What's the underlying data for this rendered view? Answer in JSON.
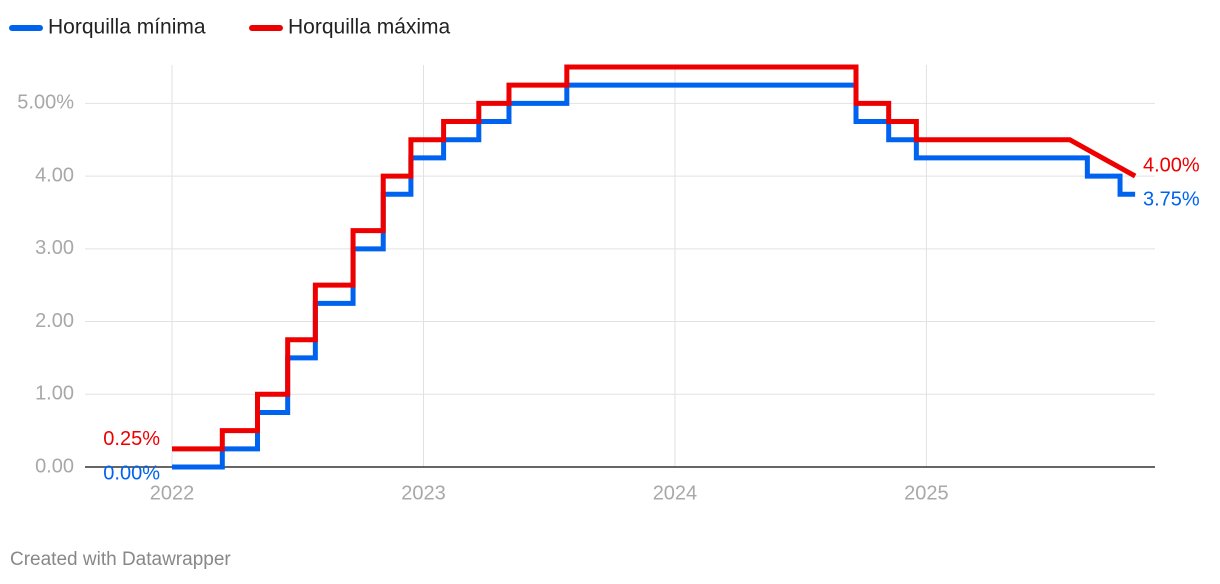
{
  "chart_data": {
    "type": "line",
    "series": [
      {
        "name": "Horquilla mínima",
        "color": "#0063ef",
        "x": [
          2022.0,
          2022.2,
          2022.2,
          2022.34,
          2022.34,
          2022.46,
          2022.46,
          2022.57,
          2022.57,
          2022.72,
          2022.72,
          2022.84,
          2022.84,
          2022.95,
          2022.95,
          2023.08,
          2023.08,
          2023.22,
          2023.22,
          2023.34,
          2023.34,
          2023.57,
          2023.57,
          2024.72,
          2024.72,
          2024.85,
          2024.85,
          2024.96,
          2024.96,
          2025.64,
          2025.64,
          2025.77,
          2025.77,
          2025.83
        ],
        "values": [
          0,
          0,
          0.25,
          0.25,
          0.75,
          0.75,
          1.5,
          1.5,
          2.25,
          2.25,
          3.0,
          3.0,
          3.75,
          3.75,
          4.25,
          4.25,
          4.5,
          4.5,
          4.75,
          4.75,
          5.0,
          5.0,
          5.25,
          5.25,
          4.75,
          4.75,
          4.5,
          4.5,
          4.25,
          4.25,
          4.0,
          4.0,
          3.75,
          3.75
        ],
        "first_label": "0.00%",
        "last_label": "3.75%"
      },
      {
        "name": "Horquilla máxima",
        "color": "#ee0000",
        "x": [
          2022.0,
          2022.2,
          2022.2,
          2022.34,
          2022.34,
          2022.46,
          2022.46,
          2022.57,
          2022.57,
          2022.72,
          2022.72,
          2022.84,
          2022.84,
          2022.95,
          2022.95,
          2023.08,
          2023.08,
          2023.22,
          2023.22,
          2023.34,
          2023.34,
          2023.57,
          2023.57,
          2024.72,
          2024.72,
          2024.85,
          2024.85,
          2024.96,
          2024.96,
          2025.57,
          2025.7,
          2025.83
        ],
        "values": [
          0.25,
          0.25,
          0.5,
          0.5,
          1.0,
          1.0,
          1.75,
          1.75,
          2.5,
          2.5,
          3.25,
          3.25,
          4.0,
          4.0,
          4.5,
          4.5,
          4.75,
          4.75,
          5.0,
          5.0,
          5.25,
          5.25,
          5.5,
          5.5,
          5.0,
          5.0,
          4.75,
          4.75,
          4.5,
          4.5,
          4.25,
          4.0
        ],
        "first_label": "0.25%",
        "last_label": "4.00%"
      }
    ],
    "xlim": [
      2021.654,
      2025.909
    ],
    "xticks": [
      2022,
      2023,
      2024,
      2025
    ],
    "ylim": [
      0,
      5.5
    ],
    "yticks": [
      {
        "value": 0,
        "label": "0.00"
      },
      {
        "value": 1,
        "label": "1.00"
      },
      {
        "value": 2,
        "label": "2.00"
      },
      {
        "value": 3,
        "label": "3.00"
      },
      {
        "value": 4,
        "label": "4.00"
      },
      {
        "value": 5,
        "label": "5.00%"
      }
    ],
    "grid": true,
    "legend": "top-left",
    "footer": "Created with Datawrapper"
  }
}
